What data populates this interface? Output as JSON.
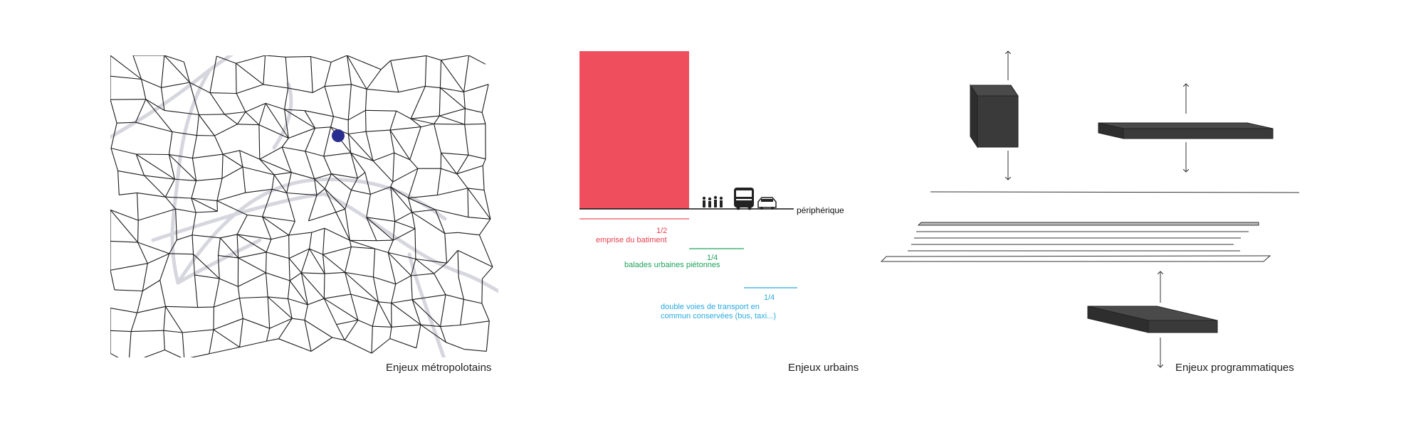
{
  "panels": {
    "metropolitan": {
      "caption": "Enjeux métropolotains"
    },
    "urban": {
      "caption": "Enjeux urbains",
      "road_label": "périphérique",
      "share_building": {
        "fraction": "1/2",
        "label": "emprise du batiment"
      },
      "share_walks": {
        "fraction": "1/4",
        "label": "balades urbaines piétonnes"
      },
      "share_transport": {
        "fraction": "1/4",
        "label_line1": "double voies de transport en",
        "label_line2": "commun conservées (bus, taxi...)"
      }
    },
    "programmatic": {
      "caption": "Enjeux programmatiques"
    }
  },
  "colors": {
    "building": "#ef4f5c",
    "walks": "#1ea35b",
    "transport": "#2aa9e0",
    "marker": "#2a2f8f",
    "roads": "#d6d6de",
    "volumes": "#3a3a3a"
  }
}
